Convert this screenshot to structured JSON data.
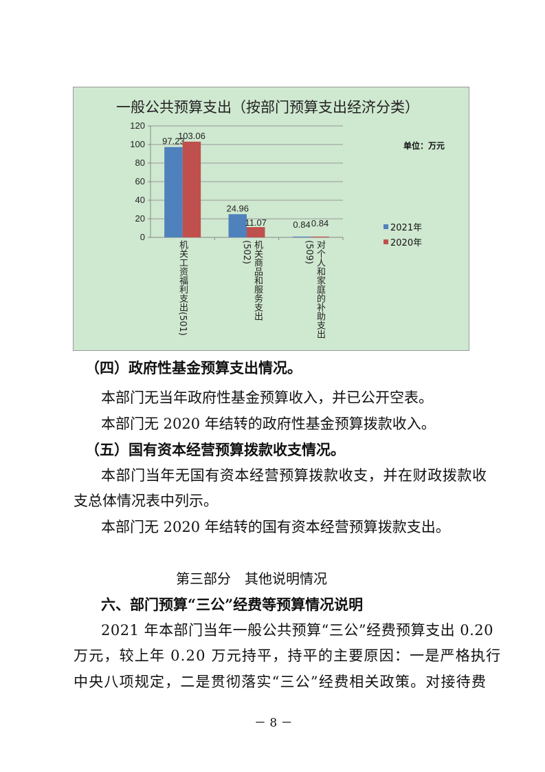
{
  "chart_data": {
    "type": "bar",
    "title": "一般公共预算支出（按部门预算支出经济分类）",
    "unit_label": "单位：万元",
    "categories": [
      "机关工资福利支出(501)",
      "机关商品和服务支出(502)",
      "对个人和家庭的补助支出(509)"
    ],
    "series": [
      {
        "name": "2021年",
        "values": [
          97.23,
          24.96,
          0.84
        ],
        "color": "#4f81bd"
      },
      {
        "name": "2020年",
        "values": [
          103.06,
          11.07,
          0.84
        ],
        "color": "#c0504d"
      }
    ],
    "data_labels": [
      [
        "97.23",
        "24.96",
        "0.84"
      ],
      [
        "103.06",
        "11.07",
        "0.84"
      ]
    ],
    "ylim": [
      0,
      120
    ],
    "yticks": [
      "0",
      "20",
      "40",
      "60",
      "80",
      "100",
      "120"
    ],
    "grid": true,
    "legend": "right",
    "background": "#cfe8d0"
  },
  "body": {
    "h4": "（四）政府性基金预算支出情况。",
    "p1": "本部门无当年政府性基金预算收入，并已公开空表。",
    "p2": "本部门无 2020 年结转的政府性基金预算拨款收入。",
    "h5": "（五）国有资本经营预算拨款收支情况。",
    "p3a": "本部门当年无国有资本经营预算拨款收支，并在财政拨款收",
    "p3b": "支总体情况表中列示。",
    "p4": "本部门无 2020 年结转的国有资本经营预算拨款支出。",
    "part3": "第三部分　其他说明情况",
    "h6": "六、部门预算“三公”经费等预算情况说明",
    "p5a": "2021 年本部门当年一般公共预算“三公”经费预算支出 0.20",
    "p5b": "万元，较上年 0.20 万元持平，持平的主要原因：一是严格执行",
    "p5c": "中央八项规定，二是贯彻落实“三公”经费相关政策。对接待费",
    "page_number": "－ 8 －"
  }
}
